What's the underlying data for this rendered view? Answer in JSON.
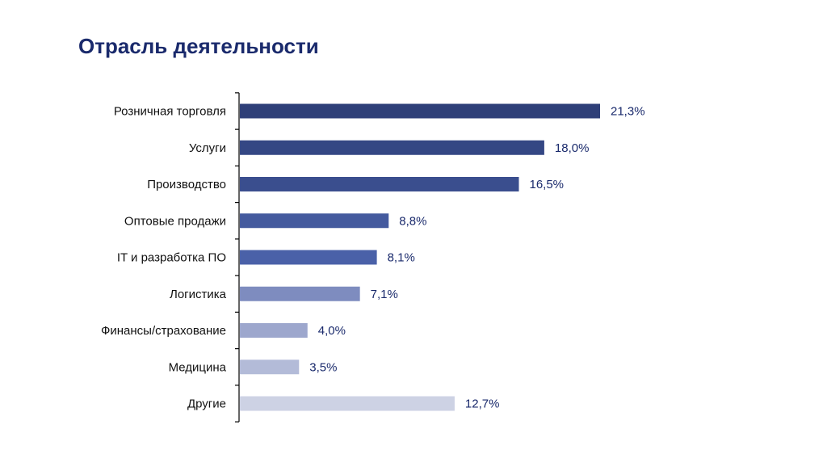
{
  "slide": {
    "title": "Отрасль деятельности"
  },
  "chart_data": {
    "type": "bar",
    "orientation": "horizontal",
    "title": "Отрасль деятельности",
    "xlabel": "",
    "ylabel": "",
    "xlim": [
      0,
      21.3
    ],
    "grid": false,
    "legend": "none",
    "categories": [
      "Розничная торговля",
      "Услуги",
      "Производство",
      "Оптовые продажи",
      "IT и разработка ПО",
      "Логистика",
      "Финансы/страхование",
      "Медицина",
      "Другие"
    ],
    "values": [
      21.3,
      18.0,
      16.5,
      8.8,
      8.1,
      7.1,
      4.0,
      3.5,
      12.7
    ],
    "value_labels": [
      "21,3%",
      "18,0%",
      "16,5%",
      "8,8%",
      "8,1%",
      "7,1%",
      "4,0%",
      "3,5%",
      "12,7%"
    ],
    "bar_colors": [
      "#2e3f78",
      "#344784",
      "#3a4e8e",
      "#445a9e",
      "#4a61a8",
      "#7e8cbf",
      "#9da7cd",
      "#b3bbd8",
      "#cdd2e4"
    ],
    "title_color": "#1a2a6c",
    "value_label_color": "#1a2a6c"
  }
}
